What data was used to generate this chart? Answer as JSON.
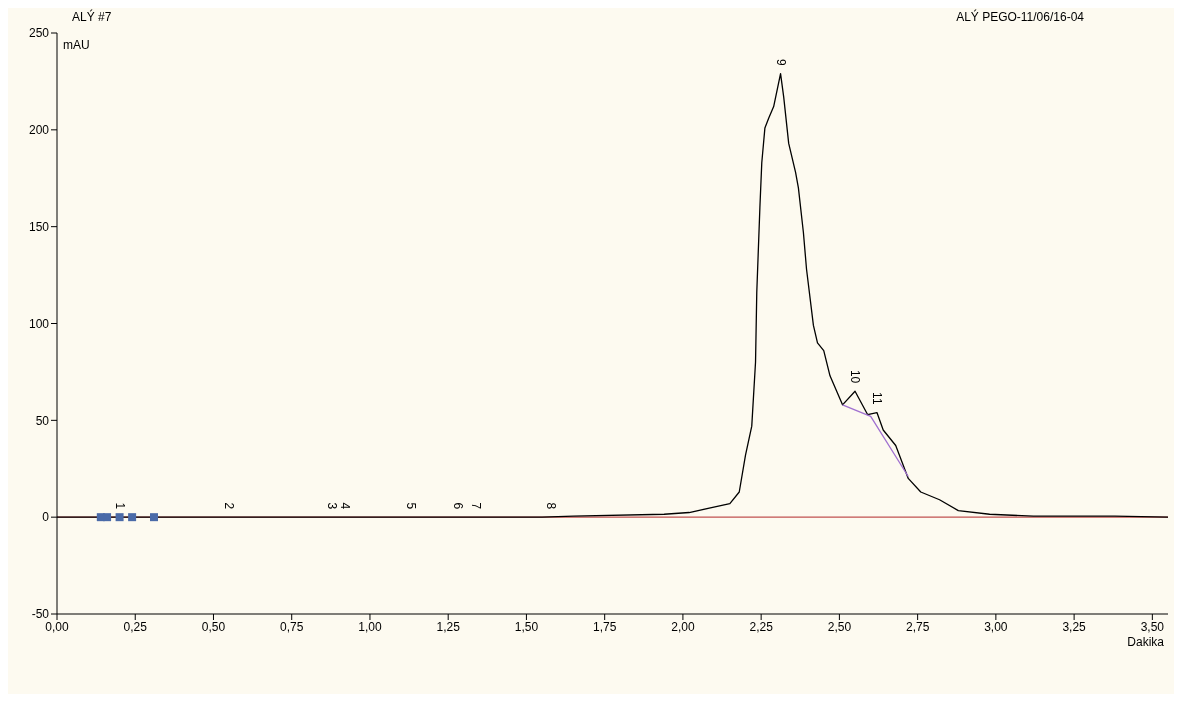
{
  "chart_data": {
    "type": "line",
    "title": "ALÝ #7",
    "subtitle": "ALÝ PEGO-11/06/16-04",
    "xlabel": "Dakika",
    "ylabel": "mAU",
    "xlim": [
      0,
      3.55
    ],
    "xticks": [
      {
        "value": 0,
        "label": "0,00"
      },
      {
        "value": 0.25,
        "label": "0,25"
      },
      {
        "value": 0.5,
        "label": "0,50"
      },
      {
        "value": 0.75,
        "label": "0,75"
      },
      {
        "value": 1,
        "label": "1,00"
      },
      {
        "value": 1.25,
        "label": "1,25"
      },
      {
        "value": 1.5,
        "label": "1,50"
      },
      {
        "value": 1.75,
        "label": "1,75"
      },
      {
        "value": 2,
        "label": "2,00"
      },
      {
        "value": 2.25,
        "label": "2,25"
      },
      {
        "value": 2.5,
        "label": "2,50"
      },
      {
        "value": 2.75,
        "label": "2,75"
      },
      {
        "value": 3,
        "label": "3,00"
      },
      {
        "value": 3.25,
        "label": "3,25"
      },
      {
        "value": 3.5,
        "label": "3,50"
      }
    ],
    "ylim": [
      -50,
      250
    ],
    "yticks": [
      -50,
      0,
      50,
      100,
      150,
      200,
      250
    ],
    "grid": false,
    "marker": "none",
    "line_style": "solid",
    "series": [
      {
        "color": "#000000",
        "x": [
          0,
          1.55,
          1.65,
          1.94,
          2.02,
          2.15,
          2.18,
          2.2,
          2.22,
          2.232,
          2.236,
          2.246,
          2.252,
          2.262,
          2.274,
          2.29,
          2.312,
          2.322,
          2.338,
          2.36,
          2.369,
          2.385,
          2.395,
          2.417,
          2.43,
          2.45,
          2.47,
          2.51,
          2.55,
          2.59,
          2.62,
          2.64,
          2.68,
          2.72,
          2.76,
          2.82,
          2.88,
          2.98,
          3.12,
          3.38,
          3.55
        ],
        "values": [
          0,
          0,
          0.5,
          1.5,
          2.4,
          7,
          13,
          32,
          47,
          80,
          116,
          160,
          183,
          201,
          206,
          212,
          229,
          217,
          193,
          178,
          170,
          147,
          128,
          99,
          90,
          86,
          73,
          58,
          65,
          53,
          54,
          45,
          37,
          20,
          13,
          9,
          3.4,
          1.5,
          0.5,
          0.5,
          0
        ]
      },
      {
        "type": "line",
        "color": "#a070d0",
        "x": [
          2.51,
          2.6,
          2.72
        ],
        "values": [
          58,
          52,
          21
        ]
      },
      {
        "type": "scatter",
        "color": "#4a6aa8",
        "marker": "square",
        "x": [
          0.14,
          0.16,
          0.2,
          0.24,
          0.31
        ],
        "values": [
          0,
          0,
          0,
          0,
          0
        ]
      }
    ],
    "ref_lines": [
      {
        "axis": "y",
        "value": 0,
        "color": "#c05050"
      }
    ],
    "annotations": [
      {
        "text": "1",
        "x": 0.2,
        "y": 0
      },
      {
        "text": "2",
        "x": 0.55,
        "y": 0
      },
      {
        "text": "3",
        "x": 0.88,
        "y": 0
      },
      {
        "text": "4",
        "x": 0.92,
        "y": 0
      },
      {
        "text": "5",
        "x": 1.13,
        "y": 0
      },
      {
        "text": "6",
        "x": 1.28,
        "y": 0
      },
      {
        "text": "7",
        "x": 1.34,
        "y": 0
      },
      {
        "text": "8",
        "x": 1.58,
        "y": 0
      },
      {
        "text": "9",
        "x": 2.312,
        "y": 229
      },
      {
        "text": "10",
        "x": 2.55,
        "y": 65
      },
      {
        "text": "11",
        "x": 2.62,
        "y": 54
      }
    ]
  }
}
